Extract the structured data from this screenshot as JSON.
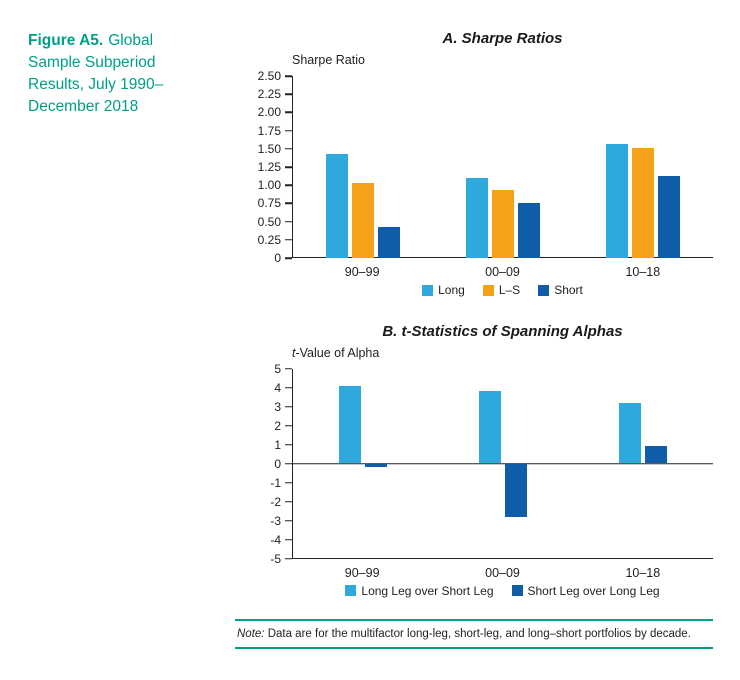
{
  "figure": {
    "label": "Figure A5.",
    "title": "Global Sample Subperiod Results, July 1990–December 2018"
  },
  "note": {
    "prefix": "Note:",
    "text": " Data are for the multifactor long-leg, short-leg, and long–short portfolios by decade."
  },
  "colors": {
    "accent_teal": "#00A087",
    "light_blue": "#2FA8DC",
    "orange": "#F7A11A",
    "dark_blue": "#0F5CA8",
    "axis": "#222222"
  },
  "chart_data": [
    {
      "type": "bar",
      "panel": "A",
      "title": "A. Sharpe Ratios",
      "ylabel": "Sharpe Ratio",
      "ylabel_italic_first": false,
      "categories": [
        "90–99",
        "00–09",
        "10–18"
      ],
      "series": [
        {
          "name": "Long",
          "color": "#2FA8DC",
          "values": [
            1.43,
            1.1,
            1.57
          ]
        },
        {
          "name": "L–S",
          "color": "#F7A11A",
          "values": [
            1.03,
            0.93,
            1.51
          ]
        },
        {
          "name": "Short",
          "color": "#0F5CA8",
          "values": [
            0.42,
            0.76,
            1.13
          ]
        }
      ],
      "ylim": [
        0,
        2.5
      ],
      "ytick_step": 0.25,
      "ytick_labels": [
        "0",
        "0.25",
        "0.50",
        "0.75",
        "1.00",
        "1.25",
        "1.50",
        "1.75",
        "2.00",
        "2.25",
        "2.50"
      ],
      "grid": false,
      "legend_position": "bottom"
    },
    {
      "type": "bar",
      "panel": "B",
      "title": "B. t-Statistics of Spanning Alphas",
      "ylabel": "t-Value of Alpha",
      "ylabel_italic_first": true,
      "categories": [
        "90–99",
        "00–09",
        "10–18"
      ],
      "series": [
        {
          "name": "Long Leg over Short Leg",
          "color": "#2FA8DC",
          "values": [
            4.1,
            3.8,
            3.2
          ]
        },
        {
          "name": "Short Leg over Long Leg",
          "color": "#0F5CA8",
          "values": [
            -0.2,
            -2.8,
            0.9
          ]
        }
      ],
      "ylim": [
        -5,
        5
      ],
      "ytick_step": 1,
      "ytick_labels": [
        "-5",
        "-4",
        "-3",
        "-2",
        "-1",
        "0",
        "1",
        "2",
        "3",
        "4",
        "5"
      ],
      "grid": false,
      "legend_position": "bottom"
    }
  ]
}
